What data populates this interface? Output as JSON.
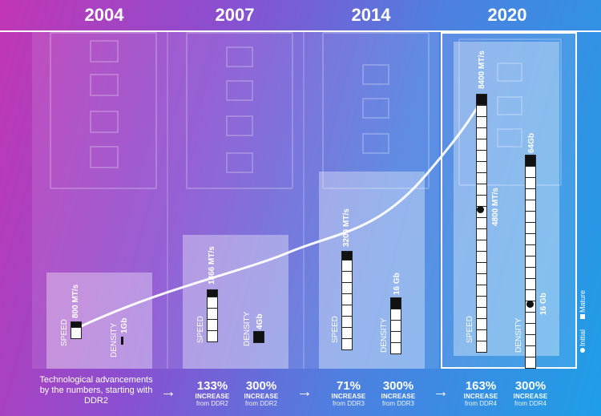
{
  "years": [
    "2004",
    "2007",
    "2014",
    "2020"
  ],
  "generations": [
    {
      "speed_label": "SPEED",
      "speed_value": "800 MT/s",
      "density_label": "DENSITY",
      "density_value": "1Gb"
    },
    {
      "speed_label": "SPEED",
      "speed_value": "1866 MT/s",
      "density_label": "DENSITY",
      "density_value": "4Gb"
    },
    {
      "speed_label": "SPEED",
      "speed_value": "3200 MT/s",
      "density_label": "DENSITY",
      "density_value": "16 Gb"
    },
    {
      "speed_label": "SPEED",
      "speed_value_mature": "8400 MT/s",
      "speed_value_initial": "4800 MT/s",
      "density_label": "DENSITY",
      "density_value_mature": "64Gb",
      "density_value_initial": "16 Gb"
    }
  ],
  "legend": {
    "initial": "Initial",
    "mature": "Mature"
  },
  "footer": {
    "intro": "Technological advancements by the numbers, starting with DDR2",
    "arrow": "→",
    "stats": [
      {
        "pct": "133%",
        "label": "INCREASE",
        "source": "from DDR2"
      },
      {
        "pct": "300%",
        "label": "INCREASE",
        "source": "from DDR2"
      },
      {
        "pct": "71%",
        "label": "INCREASE",
        "source": "from DDR3"
      },
      {
        "pct": "300%",
        "label": "INCREASE",
        "source": "from DDR3"
      },
      {
        "pct": "163%",
        "label": "INCREASE",
        "source": "from DDR4"
      },
      {
        "pct": "300%",
        "label": "INCREASE",
        "source": "from DDR4"
      }
    ]
  }
}
